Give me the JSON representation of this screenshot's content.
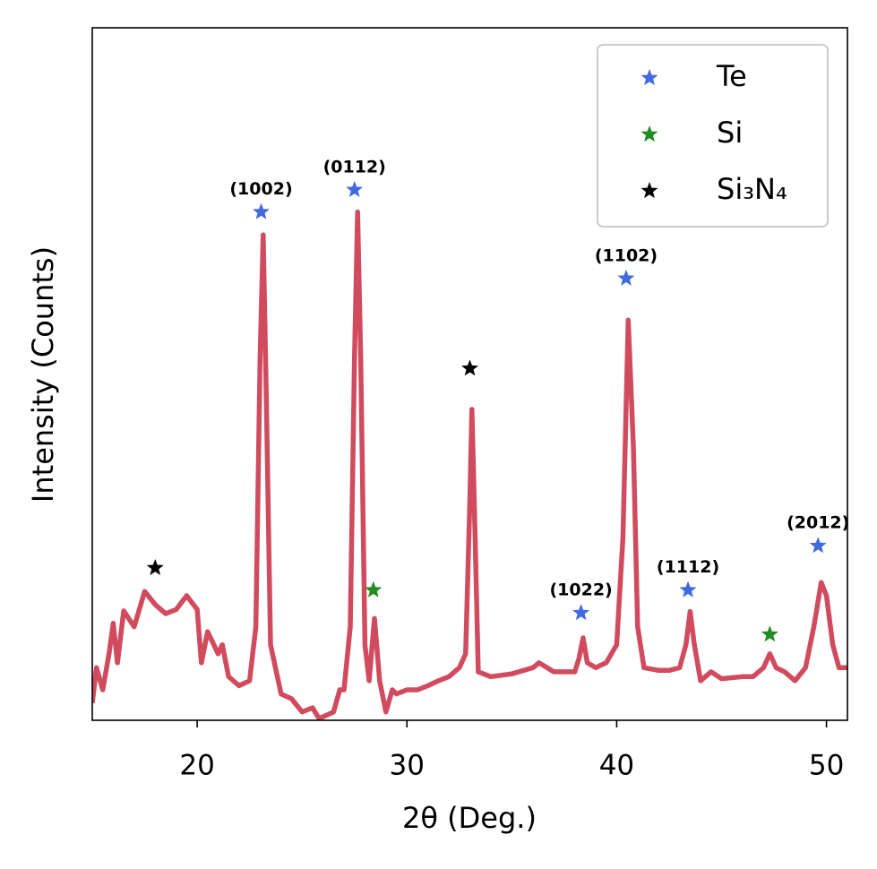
{
  "chart_data": {
    "type": "line",
    "xlabel": "2θ (Deg.)",
    "ylabel": "Intensity (Counts)",
    "xlim": [
      15,
      51
    ],
    "xticks": [
      20,
      30,
      40,
      50
    ],
    "ylim": [
      0,
      100
    ],
    "legend": "upper right",
    "line": {
      "color": "#d14b5e",
      "x": [
        15,
        15.2,
        15.5,
        15.8,
        16,
        16.2,
        16.5,
        17,
        17.5,
        18,
        18.5,
        19,
        19.5,
        20,
        20.2,
        20.5,
        21,
        21.2,
        21.5,
        22,
        22.5,
        22.8,
        23.0,
        23.15,
        23.3,
        23.5,
        24,
        24.5,
        25,
        25.5,
        25.8,
        26,
        26.5,
        26.8,
        27.0,
        27.3,
        27.5,
        27.65,
        27.8,
        28,
        28.2,
        28.45,
        28.7,
        29,
        29.3,
        29.5,
        30,
        30.5,
        31,
        31.5,
        32,
        32.5,
        32.8,
        33.0,
        33.1,
        33.25,
        33.4,
        34,
        35,
        36,
        36.3,
        37,
        38,
        38.2,
        38.4,
        38.6,
        39,
        39.5,
        40,
        40.3,
        40.55,
        40.8,
        41,
        41.3,
        42,
        42.5,
        43,
        43.3,
        43.5,
        43.7,
        44,
        44.5,
        45,
        46,
        46.5,
        47,
        47.3,
        47.6,
        48,
        48.5,
        49,
        49.4,
        49.75,
        50,
        50.3,
        50.6,
        51
      ],
      "y": [
        2.5,
        7.6,
        4.4,
        9.6,
        14,
        8.3,
        15.8,
        13.5,
        18.6,
        16.7,
        15.4,
        16,
        18,
        16,
        8.3,
        12.8,
        9.6,
        10.9,
        6.3,
        5,
        5.7,
        13.5,
        52,
        70.1,
        45.8,
        10.9,
        3.8,
        3.1,
        1.2,
        1.8,
        0.3,
        0.5,
        1.2,
        4.4,
        4.4,
        13.5,
        52,
        73.4,
        52,
        10.9,
        5.7,
        14.7,
        5.7,
        1.2,
        4.4,
        3.8,
        4.4,
        4.4,
        5,
        5.7,
        6.3,
        7.6,
        9.6,
        31.6,
        44.9,
        26.4,
        7,
        6.3,
        6.7,
        7.6,
        8.3,
        7,
        7,
        8.9,
        11.9,
        8.3,
        7.6,
        8.3,
        10.9,
        26.4,
        57.8,
        39.3,
        13.5,
        7.6,
        7.2,
        7.2,
        7.6,
        10.9,
        15.7,
        10.9,
        5.7,
        7,
        6,
        6.3,
        6.3,
        7.6,
        9.6,
        7.6,
        7,
        5.7,
        7.6,
        13.5,
        19.9,
        18,
        10.9,
        7.6,
        7.6
      ]
    },
    "markers": [
      {
        "name": "Te",
        "color": "#4169e1",
        "x": [
          23.05,
          27.5,
          38.3,
          40.45,
          43.4,
          49.6
        ],
        "y": [
          73.4,
          76.6,
          15.5,
          63.8,
          18.8,
          25.2
        ]
      },
      {
        "name": "Si",
        "color": "#228b22",
        "x": [
          28.4,
          47.3
        ],
        "y": [
          18.8,
          12.4
        ]
      },
      {
        "name": "Si₃N₄",
        "color": "#000000",
        "x": [
          18.0,
          33.0
        ],
        "y": [
          22,
          50.8
        ]
      }
    ],
    "annotations": [
      {
        "text": "(1002)",
        "x": 23.05,
        "y": 73.4
      },
      {
        "text": "(0112)",
        "x": 27.5,
        "y": 76.6
      },
      {
        "text": "(1022)",
        "x": 38.3,
        "y": 15.5
      },
      {
        "text": "(1102)",
        "x": 40.45,
        "y": 63.8
      },
      {
        "text": "(1112)",
        "x": 43.4,
        "y": 18.8
      },
      {
        "text": "(2012)",
        "x": 49.6,
        "y": 25.2
      }
    ]
  }
}
